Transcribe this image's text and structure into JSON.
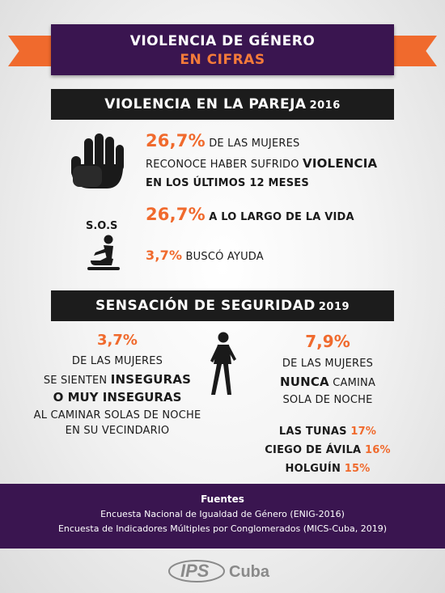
{
  "title": {
    "line1": "VIOLENCIA DE GÉNERO",
    "line2": "EN CIFRAS"
  },
  "section1": {
    "heading": "VIOLENCIA EN LA PAREJA",
    "year": "2016",
    "stat1": {
      "value": "26,7%",
      "text_a": "DE LAS MUJERES",
      "text_b": "RECONOCE HABER SUFRIDO",
      "text_b_bold": "VIOLENCIA",
      "text_c": "EN LOS ÚLTIMOS 12 MESES"
    },
    "stat2": {
      "value": "26,7%",
      "text": "A LO LARGO DE LA VIDA"
    },
    "sos_label": "S.O.S",
    "stat3": {
      "value": "3,7%",
      "text": "BUSCÓ AYUDA"
    }
  },
  "section2": {
    "heading": "SENSACIÓN DE SEGURIDAD",
    "year": "2019",
    "left": {
      "value": "3,7%",
      "line1": "DE LAS MUJERES",
      "line2_pre": "SE SIENTEN",
      "line2_bold": "INSEGURAS",
      "line3_bold": "O MUY INSEGURAS",
      "line4": "AL CAMINAR SOLAS DE NOCHE",
      "line5": "EN SU VECINDARIO"
    },
    "right": {
      "value": "7,9%",
      "line1": "DE LAS MUJERES",
      "line2_bold": "NUNCA",
      "line2_post": "CAMINA",
      "line3": "SOLA DE NOCHE",
      "provinces": [
        {
          "name": "LAS TUNAS",
          "value": "17%"
        },
        {
          "name": "CIEGO DE ÁVILA",
          "value": "16%"
        },
        {
          "name": "HOLGUÍN",
          "value": "15%"
        }
      ]
    }
  },
  "footer": {
    "heading": "Fuentes",
    "source1": "Encuesta Nacional de Igualdad de Género (ENIG-2016)",
    "source2": "Encuesta de Indicadores Múltiples por Conglomerados (MICS-Cuba, 2019)"
  },
  "logo": {
    "ips": "IPS",
    "cuba": "Cuba"
  },
  "colors": {
    "accent": "#f06a2d",
    "purple": "#3a1550",
    "dark": "#1c1c1c"
  }
}
